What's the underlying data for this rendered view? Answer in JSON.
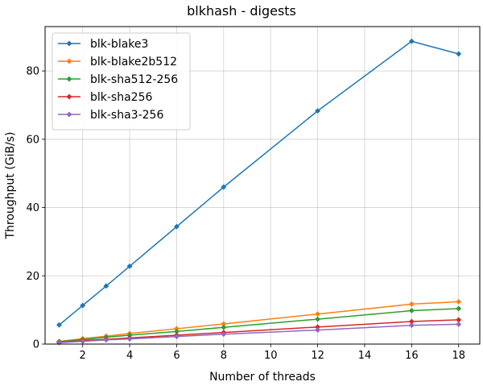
{
  "chart_data": {
    "type": "line",
    "title": "blkhash - digests",
    "xlabel": "Number of threads",
    "ylabel": "Throughput (GiB/s)",
    "x": [
      1,
      2,
      3,
      4,
      6,
      8,
      12,
      16,
      18
    ],
    "xlim": [
      0.4,
      18.9
    ],
    "ylim": [
      0,
      93
    ],
    "xticks": [
      2,
      4,
      6,
      8,
      10,
      12,
      14,
      16,
      18
    ],
    "yticks": [
      0,
      20,
      40,
      60,
      80
    ],
    "grid": true,
    "legend_position": "top-left",
    "series": [
      {
        "name": "blk-blake3",
        "color": "#1f77b4",
        "values": [
          5.6,
          11.3,
          17.0,
          22.8,
          34.4,
          46.0,
          68.3,
          88.7,
          85.0
        ]
      },
      {
        "name": "blk-blake2b512",
        "color": "#ff7f0e",
        "values": [
          0.8,
          1.6,
          2.3,
          3.1,
          4.5,
          5.9,
          8.8,
          11.7,
          12.4
        ]
      },
      {
        "name": "blk-sha512-256",
        "color": "#2ca02c",
        "values": [
          0.7,
          1.3,
          2.0,
          2.6,
          3.7,
          4.9,
          7.3,
          9.8,
          10.4
        ]
      },
      {
        "name": "blk-sha256",
        "color": "#d62728",
        "values": [
          0.5,
          1.0,
          1.4,
          1.8,
          2.6,
          3.4,
          5.0,
          6.6,
          7.1
        ]
      },
      {
        "name": "blk-sha3-256",
        "color": "#9467bd",
        "values": [
          0.4,
          0.8,
          1.2,
          1.5,
          2.2,
          2.9,
          4.1,
          5.5,
          5.8
        ]
      }
    ]
  }
}
